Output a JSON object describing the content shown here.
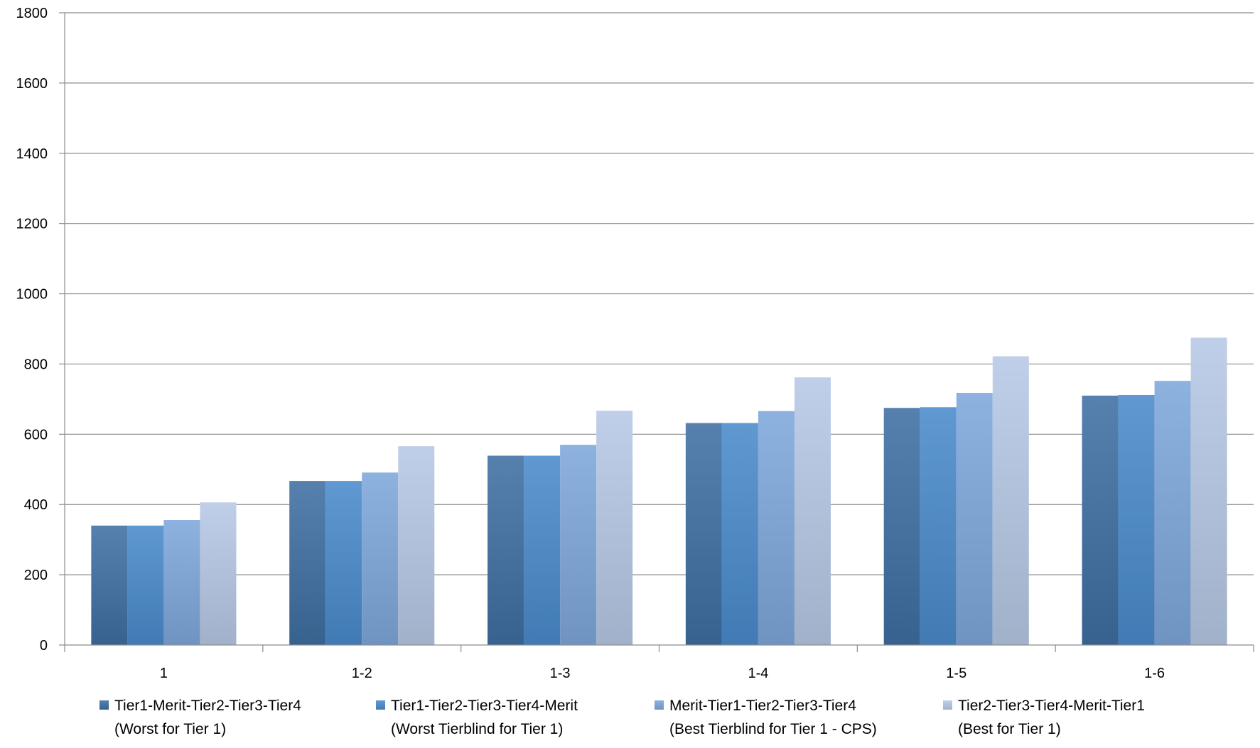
{
  "chart_data": {
    "type": "bar",
    "title": "",
    "xlabel": "",
    "ylabel": "",
    "ylim": [
      0,
      1800
    ],
    "yticks": [
      0,
      200,
      400,
      600,
      800,
      1000,
      1200,
      1400,
      1600,
      1800
    ],
    "grid": true,
    "legend_position": "bottom",
    "categories": [
      "1",
      "1-2",
      "1-3",
      "1-4",
      "1-5",
      "1-6"
    ],
    "series": [
      {
        "name": "Tier1-Merit-Tier2-Tier3-Tier4",
        "name_line2": "(Worst for Tier 1)",
        "color": "#3f6fa3",
        "values": [
          340,
          467,
          539,
          632,
          675,
          710
        ]
      },
      {
        "name": "Tier1-Tier2-Tier3-Tier4-Merit",
        "name_line2": "(Worst Tierblind for Tier 1)",
        "color": "#4a8bcc",
        "values": [
          340,
          467,
          539,
          632,
          677,
          712
        ]
      },
      {
        "name": "Merit-Tier1-Tier2-Tier3-Tier4",
        "name_line2": "(Best Tierblind for Tier 1 - CPS)",
        "color": "#7fa8dc",
        "values": [
          356,
          491,
          570,
          666,
          718,
          752
        ]
      },
      {
        "name": "Tier2-Tier3-Tier4-Merit-Tier1",
        "name_line2": "(Best for Tier 1)",
        "color": "#b7c9e6",
        "values": [
          406,
          566,
          667,
          762,
          822,
          875
        ]
      }
    ]
  }
}
